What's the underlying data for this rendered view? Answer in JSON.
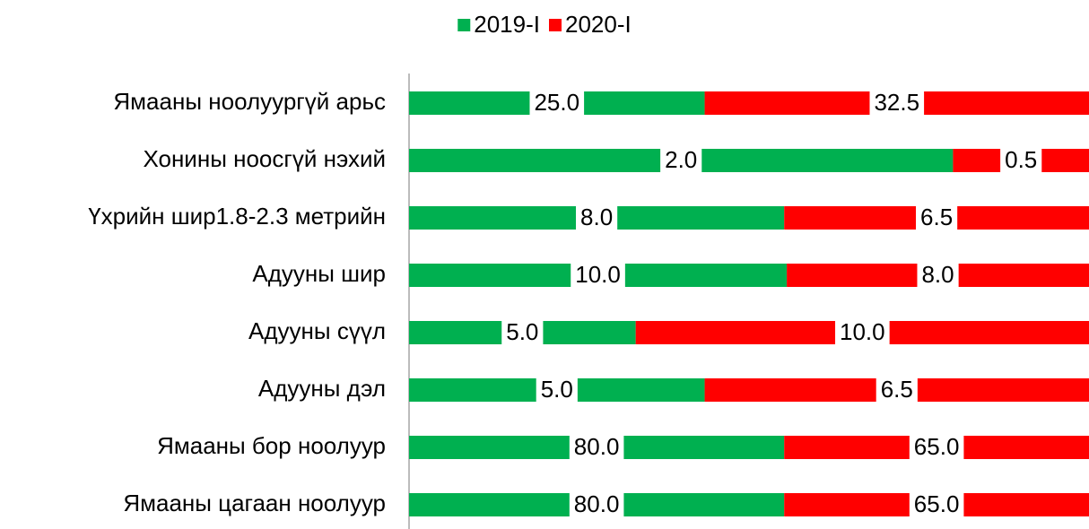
{
  "chart_data": {
    "type": "bar",
    "orientation": "horizontal",
    "stacking": "percent",
    "legend": "top",
    "categories": [
      "Ямааны ноолуургүй арьс",
      "Хонины ноосгүй нэхий ",
      "Үхрийн шир1.8-2.3 метрийн ",
      "Адууны шир",
      "Адууны сүүл",
      "Адууны дэл",
      "Ямааны бор ноолуур",
      "Ямааны цагаан ноолуур"
    ],
    "series": [
      {
        "name": "2019-I",
        "color": "#00b050",
        "values": [
          25,
          2,
          8,
          10,
          5,
          5,
          80,
          80
        ],
        "value_labels": [
          "25.0",
          "2.0",
          "8.0",
          "10.0",
          "5.0",
          "5.0",
          "80.0",
          "80.0"
        ]
      },
      {
        "name": "2020-I",
        "color": "#ff0000",
        "values": [
          32.5,
          0.5,
          6.5,
          8,
          10,
          6.5,
          65,
          65
        ],
        "value_labels": [
          "32.5",
          "0.5",
          "6.5",
          "8.0",
          "10.0",
          "6.5",
          "65.0",
          "65.0"
        ]
      }
    ]
  }
}
